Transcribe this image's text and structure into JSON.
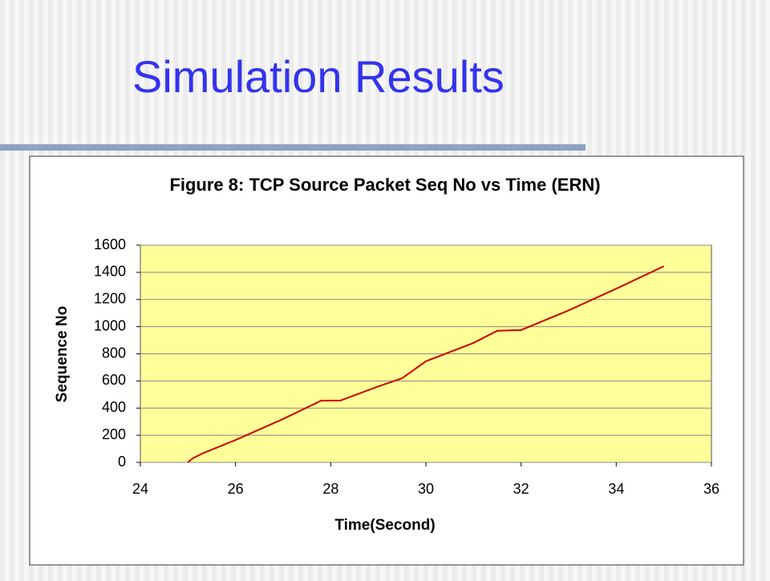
{
  "slide_title": "Simulation Results",
  "chart_data": {
    "type": "line",
    "title": "Figure 8: TCP Source Packet Seq No vs Time (ERN)",
    "x_label": "Time(Second)",
    "y_label": "Sequence No",
    "xlim": [
      24,
      36
    ],
    "xticks": [
      24,
      26,
      28,
      30,
      32,
      34,
      36
    ],
    "ylim": [
      0,
      1600
    ],
    "yticks": [
      0,
      200,
      400,
      600,
      800,
      1000,
      1200,
      1400,
      1600
    ],
    "grid": true,
    "plot_background": "#ffff99",
    "series": [
      {
        "name": "Sequence No",
        "color": "#cc0000",
        "x": [
          25,
          25.1,
          25.3,
          26,
          27,
          27.8,
          28.2,
          29,
          29.5,
          30,
          31,
          31.5,
          32,
          33,
          34,
          35
        ],
        "values": [
          0,
          30,
          65,
          165,
          320,
          455,
          455,
          560,
          620,
          745,
          880,
          970,
          975,
          1120,
          1280,
          1445
        ]
      }
    ]
  }
}
